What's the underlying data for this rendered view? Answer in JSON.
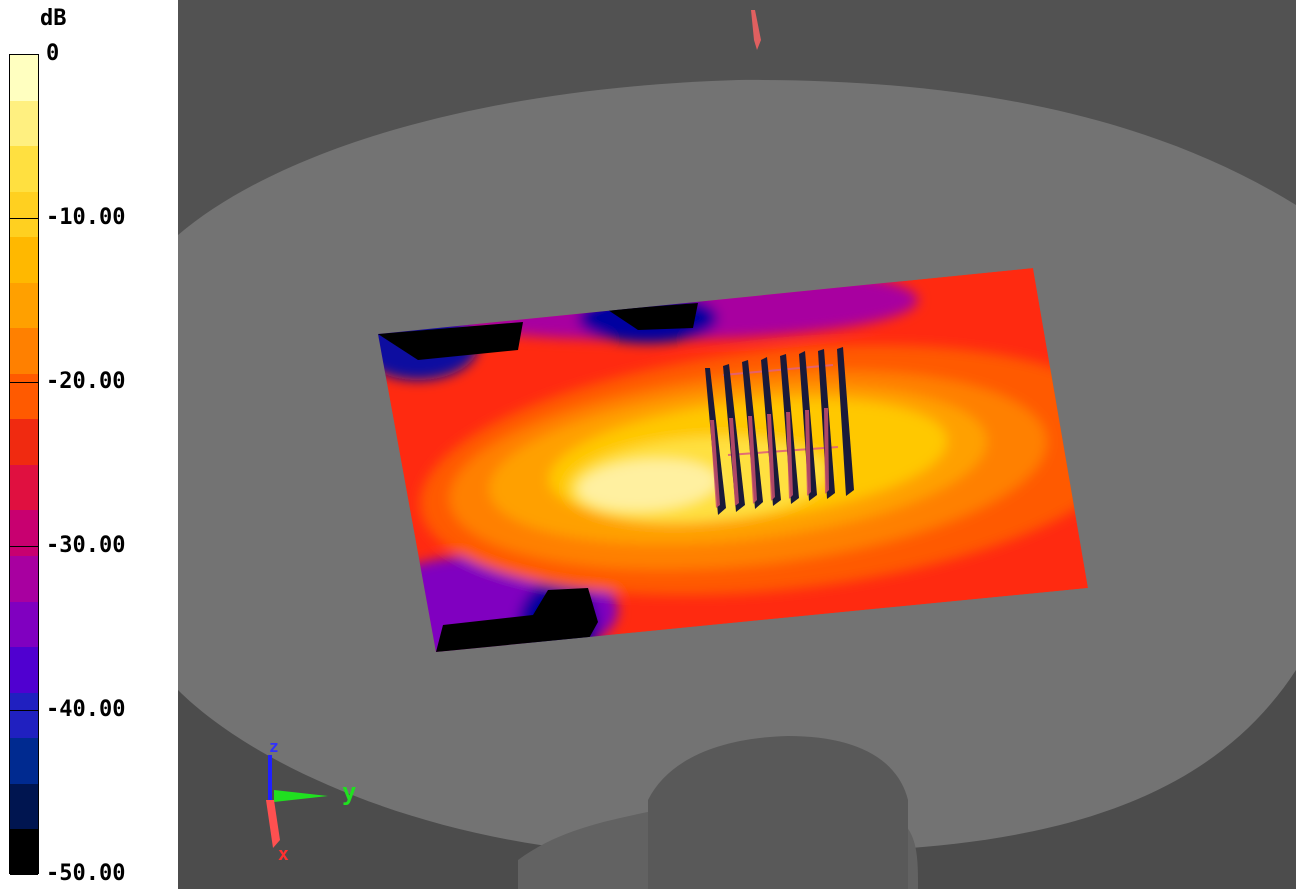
{
  "colorbar": {
    "unit": "dB",
    "ticks": [
      "0",
      "-10.00",
      "-20.00",
      "-30.00",
      "-40.00",
      "-50.00"
    ],
    "range": [
      -50,
      0
    ],
    "colors": [
      "#ffffc0",
      "#fff080",
      "#ffe040",
      "#ffd020",
      "#ffb800",
      "#ffa000",
      "#ff8000",
      "#ff5a00",
      "#f02a10",
      "#e01040",
      "#c80070",
      "#a800a0",
      "#8000c0",
      "#5000d0",
      "#2020c0",
      "#002a90",
      "#001550",
      "#000000"
    ]
  },
  "scene": {
    "axis_labels": {
      "x": "x",
      "y": "y",
      "z": "z"
    },
    "axis_colors": {
      "x": "#ff3030",
      "y": "#20e020",
      "z": "#2020ff"
    },
    "background_color": "#4a4a4a",
    "shell_color": "#707070"
  }
}
